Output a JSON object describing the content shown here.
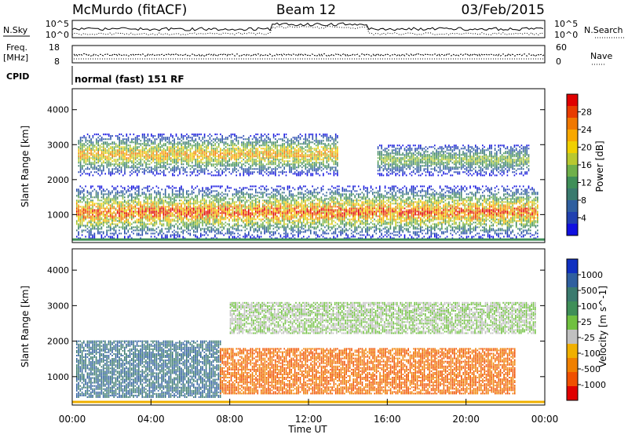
{
  "header": {
    "station": "McMurdo (fitACF)",
    "beam": "Beam 12",
    "date": "03/Feb/2015"
  },
  "top_panels": {
    "nsky_label": "N.Sky",
    "nsky_ticks": [
      "10^5",
      "10^0"
    ],
    "nsearch_label": "N.Search",
    "nsearch_ticks": [
      "10^5",
      "10^0"
    ],
    "freq_label_1": "Freq.",
    "freq_label_2": "[MHz]",
    "freq_ticks": [
      "18",
      "8"
    ],
    "nave_label": "Nave",
    "nave_ticks": [
      "60",
      "0"
    ],
    "cpid_label": "CPID",
    "cpid_text": "normal (fast) 151 RF"
  },
  "chart_data": [
    {
      "type": "heatmap",
      "name": "power",
      "ylabel": "Slant Range [km]",
      "yticks": [
        "1000",
        "2000",
        "3000",
        "4000"
      ],
      "ylim": [
        200,
        4600
      ],
      "xlim_hours": [
        0,
        24
      ],
      "colorbar": {
        "label": "Power [dB]",
        "ticks": [
          "4",
          "8",
          "12",
          "16",
          "20",
          "24",
          "28"
        ],
        "colors": [
          "#1010e0",
          "#2040b0",
          "#2f5f9f",
          "#3a7a6e",
          "#3f8f58",
          "#6fb04a",
          "#b8c830",
          "#f0d000",
          "#f8a800",
          "#f07800",
          "#e83c00",
          "#e00000"
        ]
      },
      "bands": [
        {
          "km_lo": 300,
          "km_hi": 1800,
          "h_start": 0.2,
          "h_end": 23.6,
          "max_db": 30
        },
        {
          "km_lo": 2100,
          "km_hi": 3300,
          "h_start": 0.3,
          "h_end": 13.5,
          "max_db": 26
        },
        {
          "km_lo": 2100,
          "km_hi": 3000,
          "h_start": 15.5,
          "h_end": 23.2,
          "max_db": 18
        }
      ]
    },
    {
      "type": "heatmap",
      "name": "velocity",
      "ylabel": "Slant Range [km]",
      "xlabel": "Time UT",
      "yticks": [
        "1000",
        "2000",
        "3000",
        "4000"
      ],
      "xticks": [
        "00:00",
        "04:00",
        "08:00",
        "12:00",
        "16:00",
        "20:00",
        "00:00"
      ],
      "ylim": [
        200,
        4600
      ],
      "xlim_hours": [
        0,
        24
      ],
      "colorbar": {
        "label": "Velocity [m s^-1]",
        "ticks": [
          "1000",
          "500",
          "100",
          "25",
          "-25",
          "-100",
          "-500",
          "-1000"
        ],
        "colors": [
          "#1030c0",
          "#2f5f9f",
          "#3a7a6e",
          "#3f8f58",
          "#70c040",
          "#c0c0c0",
          "#f0b000",
          "#f08000",
          "#f05000",
          "#e00000"
        ]
      },
      "regions": [
        {
          "km_lo": 400,
          "km_hi": 2000,
          "h_start": 0.2,
          "h_end": 7.5,
          "velocity": 300
        },
        {
          "km_lo": 500,
          "km_hi": 1800,
          "h_start": 7.5,
          "h_end": 22.5,
          "velocity": -300
        },
        {
          "km_lo": 2200,
          "km_hi": 3100,
          "h_start": 8.0,
          "h_end": 23.5,
          "velocity": 0
        }
      ]
    }
  ]
}
